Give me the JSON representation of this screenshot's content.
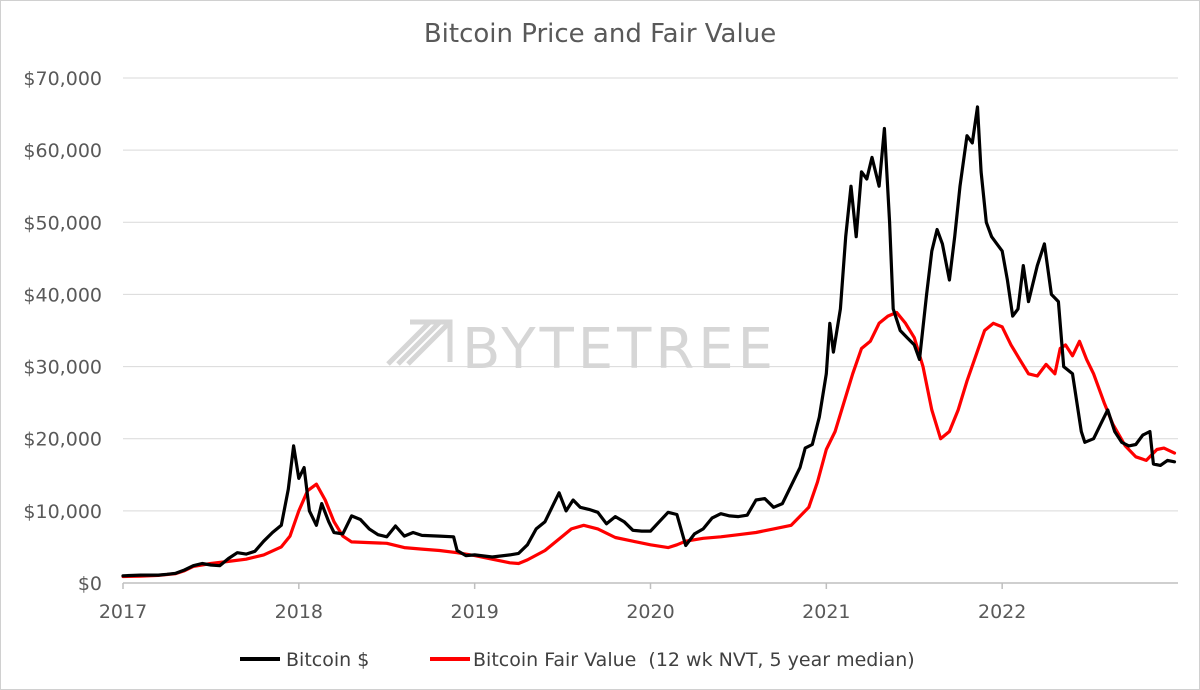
{
  "chart_data": {
    "type": "line",
    "title": "Bitcoin Price and Fair Value",
    "watermark": "BYTETREE",
    "xlabel": "",
    "ylabel": "",
    "xlim": [
      2017,
      2023
    ],
    "ylim": [
      0,
      70000
    ],
    "x_ticks": [
      2017,
      2018,
      2019,
      2020,
      2021,
      2022
    ],
    "x_tick_labels": [
      "2017",
      "2018",
      "2019",
      "2020",
      "2021",
      "2022"
    ],
    "y_ticks": [
      0,
      10000,
      20000,
      30000,
      40000,
      50000,
      60000,
      70000
    ],
    "y_tick_labels": [
      "$0",
      "$10,000",
      "$20,000",
      "$30,000",
      "$40,000",
      "$50,000",
      "$60,000",
      "$70,000"
    ],
    "grid": "horizontal",
    "legend_position": "bottom",
    "series": [
      {
        "name": "Bitcoin $",
        "color": "#000000",
        "points": [
          [
            2017.0,
            1000
          ],
          [
            2017.1,
            1100
          ],
          [
            2017.2,
            1100
          ],
          [
            2017.25,
            1200
          ],
          [
            2017.3,
            1350
          ],
          [
            2017.35,
            1800
          ],
          [
            2017.4,
            2400
          ],
          [
            2017.45,
            2700
          ],
          [
            2017.5,
            2500
          ],
          [
            2017.55,
            2400
          ],
          [
            2017.6,
            3400
          ],
          [
            2017.65,
            4200
          ],
          [
            2017.7,
            4000
          ],
          [
            2017.75,
            4400
          ],
          [
            2017.8,
            5800
          ],
          [
            2017.85,
            7000
          ],
          [
            2017.9,
            8000
          ],
          [
            2017.94,
            13000
          ],
          [
            2017.97,
            19000
          ],
          [
            2018.0,
            14500
          ],
          [
            2018.03,
            16000
          ],
          [
            2018.06,
            10000
          ],
          [
            2018.1,
            8000
          ],
          [
            2018.13,
            11000
          ],
          [
            2018.17,
            8500
          ],
          [
            2018.2,
            7000
          ],
          [
            2018.25,
            6800
          ],
          [
            2018.3,
            9300
          ],
          [
            2018.35,
            8800
          ],
          [
            2018.4,
            7500
          ],
          [
            2018.45,
            6700
          ],
          [
            2018.5,
            6400
          ],
          [
            2018.55,
            7900
          ],
          [
            2018.6,
            6500
          ],
          [
            2018.65,
            7000
          ],
          [
            2018.7,
            6600
          ],
          [
            2018.8,
            6500
          ],
          [
            2018.88,
            6400
          ],
          [
            2018.9,
            4500
          ],
          [
            2018.95,
            3800
          ],
          [
            2019.0,
            3900
          ],
          [
            2019.1,
            3600
          ],
          [
            2019.2,
            3900
          ],
          [
            2019.25,
            4100
          ],
          [
            2019.3,
            5300
          ],
          [
            2019.35,
            7500
          ],
          [
            2019.4,
            8500
          ],
          [
            2019.45,
            11000
          ],
          [
            2019.48,
            12500
          ],
          [
            2019.52,
            10000
          ],
          [
            2019.56,
            11500
          ],
          [
            2019.6,
            10500
          ],
          [
            2019.65,
            10200
          ],
          [
            2019.7,
            9800
          ],
          [
            2019.75,
            8200
          ],
          [
            2019.8,
            9200
          ],
          [
            2019.85,
            8500
          ],
          [
            2019.9,
            7300
          ],
          [
            2019.95,
            7200
          ],
          [
            2020.0,
            7200
          ],
          [
            2020.05,
            8500
          ],
          [
            2020.1,
            9800
          ],
          [
            2020.15,
            9500
          ],
          [
            2020.2,
            5200
          ],
          [
            2020.25,
            6800
          ],
          [
            2020.3,
            7500
          ],
          [
            2020.35,
            9000
          ],
          [
            2020.4,
            9600
          ],
          [
            2020.45,
            9300
          ],
          [
            2020.5,
            9200
          ],
          [
            2020.55,
            9400
          ],
          [
            2020.6,
            11500
          ],
          [
            2020.65,
            11700
          ],
          [
            2020.7,
            10500
          ],
          [
            2020.75,
            11000
          ],
          [
            2020.8,
            13500
          ],
          [
            2020.85,
            16000
          ],
          [
            2020.88,
            18700
          ],
          [
            2020.92,
            19200
          ],
          [
            2020.96,
            23000
          ],
          [
            2021.0,
            29000
          ],
          [
            2021.02,
            36000
          ],
          [
            2021.04,
            32000
          ],
          [
            2021.08,
            38000
          ],
          [
            2021.11,
            48000
          ],
          [
            2021.14,
            55000
          ],
          [
            2021.17,
            48000
          ],
          [
            2021.2,
            57000
          ],
          [
            2021.23,
            56000
          ],
          [
            2021.26,
            59000
          ],
          [
            2021.3,
            55000
          ],
          [
            2021.33,
            63000
          ],
          [
            2021.36,
            50000
          ],
          [
            2021.38,
            38000
          ],
          [
            2021.42,
            35000
          ],
          [
            2021.46,
            34000
          ],
          [
            2021.5,
            33000
          ],
          [
            2021.53,
            31000
          ],
          [
            2021.57,
            40000
          ],
          [
            2021.6,
            46000
          ],
          [
            2021.63,
            49000
          ],
          [
            2021.66,
            47000
          ],
          [
            2021.7,
            42000
          ],
          [
            2021.73,
            48000
          ],
          [
            2021.76,
            55000
          ],
          [
            2021.8,
            62000
          ],
          [
            2021.83,
            61000
          ],
          [
            2021.86,
            66000
          ],
          [
            2021.88,
            57000
          ],
          [
            2021.91,
            50000
          ],
          [
            2021.94,
            48000
          ],
          [
            2021.97,
            47000
          ],
          [
            2022.0,
            46000
          ],
          [
            2022.03,
            42000
          ],
          [
            2022.06,
            37000
          ],
          [
            2022.09,
            38000
          ],
          [
            2022.12,
            44000
          ],
          [
            2022.15,
            39000
          ],
          [
            2022.2,
            44000
          ],
          [
            2022.24,
            47000
          ],
          [
            2022.28,
            40000
          ],
          [
            2022.32,
            39000
          ],
          [
            2022.35,
            30000
          ],
          [
            2022.4,
            29000
          ],
          [
            2022.45,
            21000
          ],
          [
            2022.47,
            19500
          ],
          [
            2022.52,
            20000
          ],
          [
            2022.56,
            22000
          ],
          [
            2022.6,
            24000
          ],
          [
            2022.64,
            21000
          ],
          [
            2022.68,
            19500
          ],
          [
            2022.72,
            19000
          ],
          [
            2022.76,
            19200
          ],
          [
            2022.8,
            20500
          ],
          [
            2022.84,
            21000
          ],
          [
            2022.86,
            16500
          ],
          [
            2022.9,
            16300
          ],
          [
            2022.94,
            17000
          ],
          [
            2022.98,
            16800
          ]
        ]
      },
      {
        "name": "Bitcoin Fair Value  (12 wk NVT, 5 year median)",
        "color": "#ff0000",
        "points": [
          [
            2017.0,
            900
          ],
          [
            2017.1,
            950
          ],
          [
            2017.2,
            1050
          ],
          [
            2017.3,
            1300
          ],
          [
            2017.35,
            1700
          ],
          [
            2017.4,
            2300
          ],
          [
            2017.5,
            2700
          ],
          [
            2017.6,
            3000
          ],
          [
            2017.7,
            3300
          ],
          [
            2017.8,
            3900
          ],
          [
            2017.9,
            5000
          ],
          [
            2017.95,
            6500
          ],
          [
            2018.0,
            10000
          ],
          [
            2018.05,
            12800
          ],
          [
            2018.1,
            13700
          ],
          [
            2018.15,
            11500
          ],
          [
            2018.2,
            8500
          ],
          [
            2018.25,
            6500
          ],
          [
            2018.3,
            5700
          ],
          [
            2018.4,
            5600
          ],
          [
            2018.5,
            5500
          ],
          [
            2018.6,
            4900
          ],
          [
            2018.7,
            4700
          ],
          [
            2018.8,
            4500
          ],
          [
            2018.9,
            4200
          ],
          [
            2019.0,
            3800
          ],
          [
            2019.1,
            3300
          ],
          [
            2019.2,
            2800
          ],
          [
            2019.25,
            2700
          ],
          [
            2019.3,
            3200
          ],
          [
            2019.4,
            4500
          ],
          [
            2019.5,
            6500
          ],
          [
            2019.55,
            7500
          ],
          [
            2019.62,
            8000
          ],
          [
            2019.7,
            7500
          ],
          [
            2019.8,
            6300
          ],
          [
            2019.9,
            5800
          ],
          [
            2020.0,
            5300
          ],
          [
            2020.1,
            4900
          ],
          [
            2020.15,
            5300
          ],
          [
            2020.2,
            5800
          ],
          [
            2020.3,
            6200
          ],
          [
            2020.4,
            6400
          ],
          [
            2020.5,
            6700
          ],
          [
            2020.6,
            7000
          ],
          [
            2020.7,
            7500
          ],
          [
            2020.8,
            8000
          ],
          [
            2020.9,
            10500
          ],
          [
            2020.95,
            14000
          ],
          [
            2021.0,
            18500
          ],
          [
            2021.05,
            21000
          ],
          [
            2021.1,
            25000
          ],
          [
            2021.15,
            29000
          ],
          [
            2021.2,
            32500
          ],
          [
            2021.25,
            33500
          ],
          [
            2021.3,
            36000
          ],
          [
            2021.35,
            37000
          ],
          [
            2021.4,
            37500
          ],
          [
            2021.45,
            36000
          ],
          [
            2021.5,
            34000
          ],
          [
            2021.55,
            30000
          ],
          [
            2021.6,
            24000
          ],
          [
            2021.65,
            20000
          ],
          [
            2021.7,
            21000
          ],
          [
            2021.75,
            24000
          ],
          [
            2021.8,
            28000
          ],
          [
            2021.85,
            31500
          ],
          [
            2021.9,
            35000
          ],
          [
            2021.95,
            36000
          ],
          [
            2022.0,
            35500
          ],
          [
            2022.05,
            33000
          ],
          [
            2022.1,
            31000
          ],
          [
            2022.15,
            29000
          ],
          [
            2022.2,
            28700
          ],
          [
            2022.25,
            30300
          ],
          [
            2022.3,
            29000
          ],
          [
            2022.33,
            32500
          ],
          [
            2022.36,
            33000
          ],
          [
            2022.4,
            31500
          ],
          [
            2022.44,
            33500
          ],
          [
            2022.48,
            31000
          ],
          [
            2022.52,
            29000
          ],
          [
            2022.58,
            25000
          ],
          [
            2022.63,
            22000
          ],
          [
            2022.7,
            19000
          ],
          [
            2022.76,
            17500
          ],
          [
            2022.82,
            17000
          ],
          [
            2022.88,
            18500
          ],
          [
            2022.92,
            18700
          ],
          [
            2022.98,
            18000
          ]
        ]
      }
    ]
  }
}
